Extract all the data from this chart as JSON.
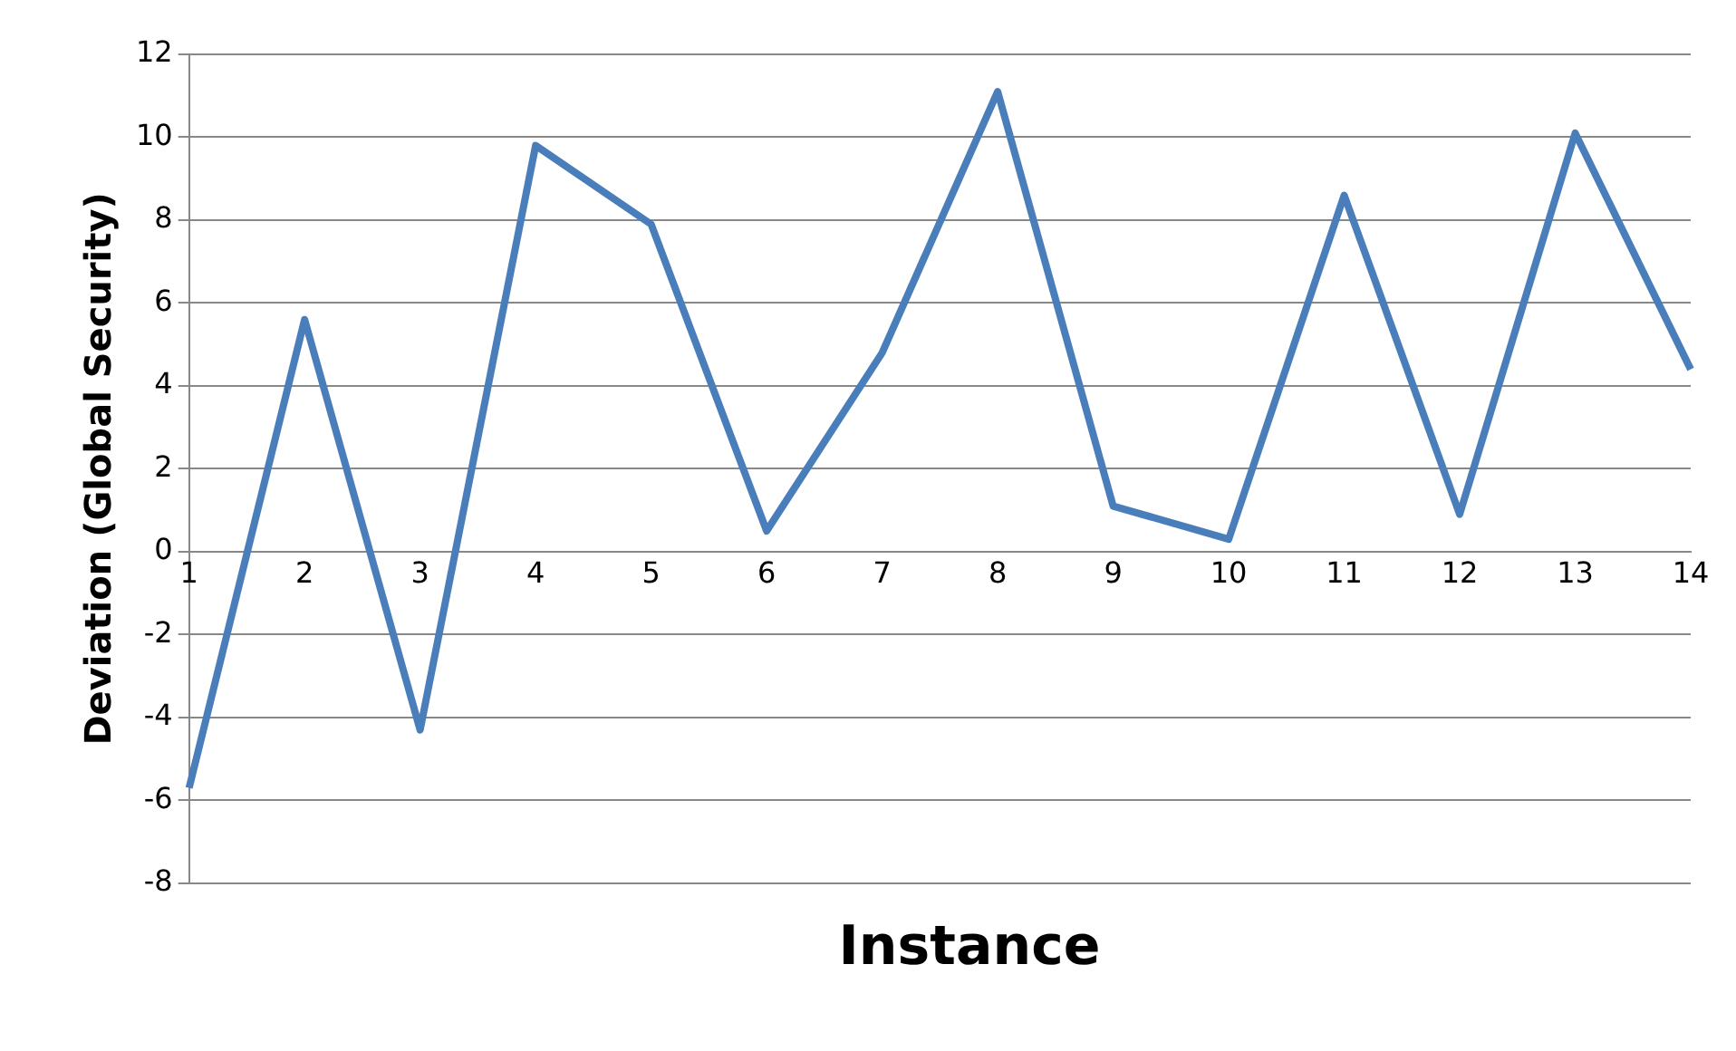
{
  "chart_data": {
    "type": "line",
    "xlabel": "Instance",
    "ylabel": "Deviation (Global Security)",
    "categories": [
      "1",
      "2",
      "3",
      "4",
      "5",
      "6",
      "7",
      "8",
      "9",
      "10",
      "11",
      "12",
      "13",
      "14"
    ],
    "series": [
      {
        "color": "#4a7ebb",
        "values": [
          -5.7,
          5.6,
          -4.3,
          9.8,
          7.9,
          0.5,
          4.8,
          11.1,
          1.1,
          0.3,
          8.6,
          0.9,
          10.1,
          4.4
        ]
      }
    ],
    "ylim": [
      -8,
      12
    ],
    "yticks": [
      -8,
      -6,
      -4,
      -2,
      0,
      2,
      4,
      6,
      8,
      10,
      12
    ],
    "grid": "y",
    "legend": false,
    "marker": "none",
    "line_style": "solid"
  }
}
